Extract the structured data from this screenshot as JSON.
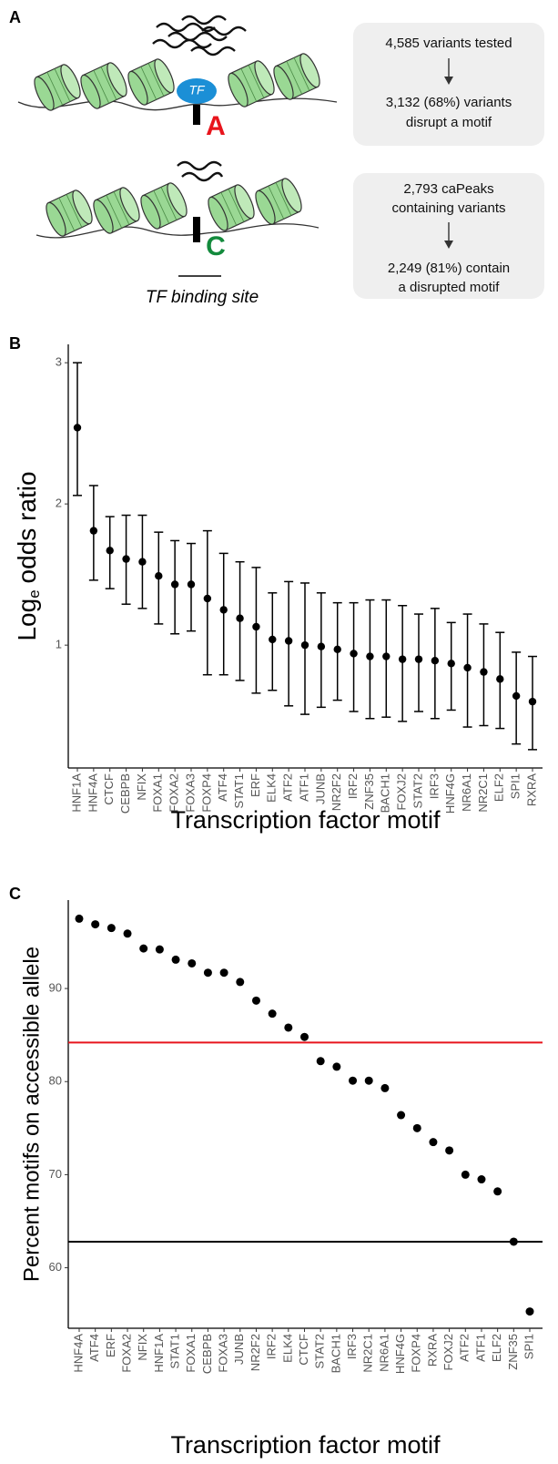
{
  "diagram": {
    "panel": "A",
    "tf": "TF",
    "allele_top": "A",
    "allele_bottom": "C",
    "site_label": "TF binding site",
    "boxes": [
      {
        "top": [
          "4,585 variants tested"
        ],
        "bottom": [
          "3,132 (68%) variants",
          "disrupt a motif"
        ]
      },
      {
        "top": [
          "2,793 caPeaks",
          "containing variants"
        ],
        "bottom": [
          "2,249 (81%) contain",
          "a disrupted motif"
        ]
      }
    ]
  },
  "chart_data": [
    {
      "panel": "B",
      "type": "errorbar",
      "ylabel": {
        "main": "Log",
        "sub": "e",
        "rest": "odds ratio"
      },
      "xlabel": "Transcription factor motif",
      "color": "#000000",
      "categories": [
        "HNF1A",
        "HNF4A",
        "CTCF",
        "CEBPB",
        "NFIX",
        "FOXA1",
        "FOXA2",
        "FOXA3",
        "FOXP4",
        "ATF4",
        "STAT1",
        "ERF",
        "ELK4",
        "ATF2",
        "ATF1",
        "JUNB",
        "NR2F2",
        "IRF2",
        "ZNF35",
        "BACH1",
        "FOXJ2",
        "STAT2",
        "IRF3",
        "HNF4G",
        "NR6A1",
        "NR2C1",
        "ELF2",
        "SPI1",
        "RXRA"
      ],
      "values": [
        2.54,
        1.81,
        1.67,
        1.61,
        1.59,
        1.49,
        1.43,
        1.43,
        1.33,
        1.25,
        1.19,
        1.13,
        1.04,
        1.03,
        1.0,
        0.99,
        0.97,
        0.94,
        0.92,
        0.92,
        0.9,
        0.9,
        0.89,
        0.87,
        0.84,
        0.81,
        0.76,
        0.64,
        0.6
      ],
      "lower": [
        2.06,
        1.46,
        1.4,
        1.29,
        1.26,
        1.15,
        1.08,
        1.1,
        0.79,
        0.79,
        0.75,
        0.66,
        0.68,
        0.57,
        0.51,
        0.56,
        0.61,
        0.53,
        0.48,
        0.49,
        0.46,
        0.53,
        0.48,
        0.54,
        0.42,
        0.43,
        0.41,
        0.3,
        0.26
      ],
      "upper": [
        3.0,
        2.13,
        1.91,
        1.92,
        1.92,
        1.8,
        1.74,
        1.72,
        1.81,
        1.65,
        1.59,
        1.55,
        1.37,
        1.45,
        1.44,
        1.37,
        1.3,
        1.3,
        1.32,
        1.32,
        1.28,
        1.22,
        1.26,
        1.16,
        1.22,
        1.15,
        1.09,
        0.95,
        0.92
      ],
      "ylim": [
        0.13,
        3.13
      ],
      "yticks": [
        1,
        2,
        3
      ]
    },
    {
      "panel": "C",
      "type": "dot",
      "ylabel": "Percent motifs on accessible allele",
      "xlabel": "Transcription factor motif",
      "color": "#000000",
      "categories": [
        "HNF4A",
        "ATF4",
        "ERF",
        "FOXA2",
        "NFIX",
        "HNF1A",
        "STAT1",
        "FOXA1",
        "CEBPB",
        "FOXA3",
        "JUNB",
        "NR2F2",
        "IRF2",
        "ELK4",
        "CTCF",
        "STAT2",
        "BACH1",
        "IRF3",
        "NR2C1",
        "NR6A1",
        "HNF4G",
        "FOXP4",
        "RXRA",
        "FOXJ2",
        "ATF2",
        "ATF1",
        "ELF2",
        "ZNF35",
        "SPI1"
      ],
      "values": [
        97.5,
        96.9,
        96.5,
        95.9,
        94.3,
        94.2,
        93.1,
        92.7,
        91.7,
        91.7,
        90.7,
        88.7,
        87.3,
        85.8,
        84.8,
        82.2,
        81.6,
        80.1,
        80.1,
        79.3,
        76.4,
        75.0,
        73.5,
        72.6,
        70.0,
        69.5,
        68.2,
        62.8,
        55.3
      ],
      "hlines": [
        {
          "value": 84.2,
          "color": "#e8141c"
        },
        {
          "value": 62.8,
          "color": "#000000"
        }
      ],
      "ylim": [
        53.5,
        99.5
      ],
      "yticks": [
        60,
        70,
        80,
        90
      ]
    }
  ]
}
